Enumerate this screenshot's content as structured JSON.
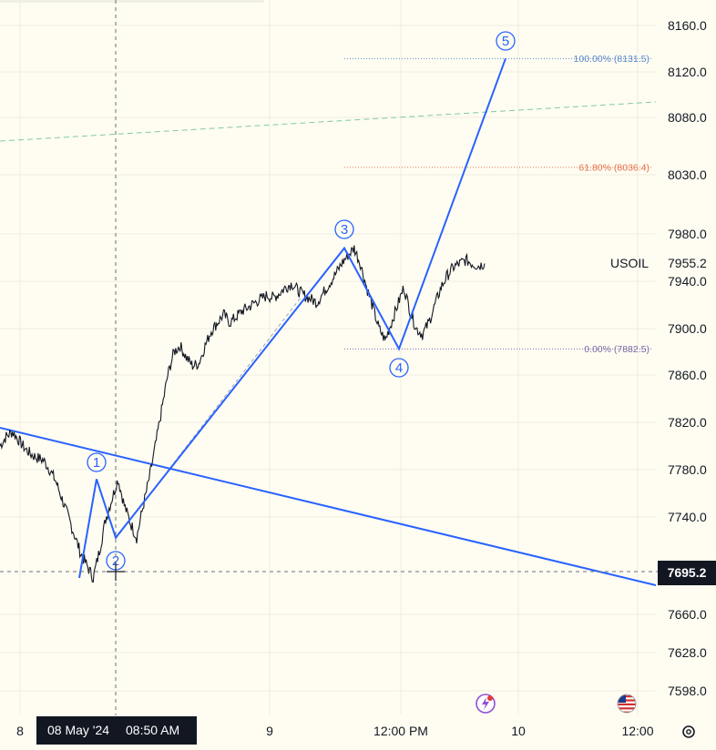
{
  "chart_data": {
    "type": "line",
    "symbol": "USOIL",
    "last_price": "7955.2",
    "crosshair": {
      "price": "7695.2",
      "date": "08 May '24",
      "time": "08:50 AM"
    },
    "y_axis": {
      "ticks": [
        "8160.0",
        "8120.0",
        "8080.0",
        "8030.0",
        "7980.0",
        "7940.0",
        "7900.0",
        "7860.0",
        "7820.0",
        "7780.0",
        "7740.0",
        "7660.0",
        "7628.0",
        "7598.0"
      ],
      "range": [
        7580,
        8180
      ]
    },
    "x_axis": {
      "ticks": [
        "8",
        "9",
        "12:00 PM",
        "10",
        "12:00"
      ]
    },
    "fib_levels": [
      {
        "label": "100.00% (8131.5)",
        "value": 8131.5,
        "color": "#5b87c9"
      },
      {
        "label": "61.80% (8036.4)",
        "value": 8036.4,
        "color": "#e8704a"
      },
      {
        "label": "0.00% (7882.5)",
        "value": 7882.5,
        "color": "#7a6aa8"
      }
    ],
    "elliott_wave": {
      "labels": [
        "1",
        "2",
        "3",
        "4",
        "5"
      ],
      "points": [
        7690,
        7772,
        7723,
        7968,
        7882.5,
        8131.5
      ]
    },
    "price_series": [
      7800,
      7808,
      7812,
      7805,
      7798,
      7793,
      7790,
      7788,
      7780,
      7770,
      7755,
      7740,
      7725,
      7710,
      7700,
      7690,
      7712,
      7738,
      7755,
      7772,
      7750,
      7735,
      7723,
      7748,
      7772,
      7800,
      7830,
      7860,
      7880,
      7885,
      7875,
      7868,
      7870,
      7885,
      7898,
      7905,
      7912,
      7905,
      7910,
      7915,
      7918,
      7922,
      7925,
      7928,
      7926,
      7930,
      7935,
      7938,
      7932,
      7928,
      7925,
      7922,
      7930,
      7938,
      7946,
      7955,
      7962,
      7968,
      7955,
      7935,
      7918,
      7900,
      7890,
      7905,
      7920,
      7935,
      7915,
      7900,
      7895,
      7905,
      7920,
      7935,
      7945,
      7952,
      7955,
      7958,
      7955,
      7953,
      7955
    ],
    "colors": {
      "wave": "#2962ff",
      "price": "#131722",
      "background": "#fffdf2"
    }
  },
  "icons": {
    "lightning": "lightning-icon",
    "flag": "us-flag-icon",
    "settings": "settings-icon"
  }
}
